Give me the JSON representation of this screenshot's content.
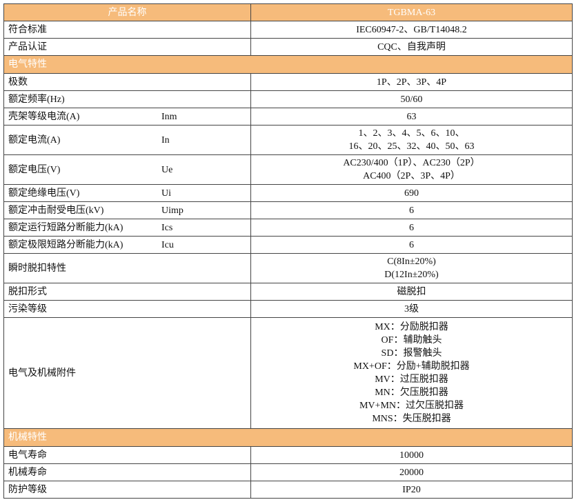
{
  "header": {
    "name_label": "产品名称",
    "model": "TGBMA-63"
  },
  "general": [
    {
      "label": "符合标准",
      "value": [
        "IEC60947-2、GB/T14048.2"
      ]
    },
    {
      "label": "产品认证",
      "value": [
        "CQC、自我声明"
      ]
    }
  ],
  "electrical_section": "电气特性",
  "electrical": [
    {
      "label": "极数",
      "symbol": "",
      "value": [
        "1P、2P、3P、4P"
      ]
    },
    {
      "label": "额定频率(Hz)",
      "symbol": "",
      "value": [
        "50/60"
      ]
    },
    {
      "label": "壳架等级电流(A)",
      "symbol": "Inm",
      "value": [
        "63"
      ]
    },
    {
      "label": "额定电流(A)",
      "symbol": "In",
      "value": [
        "1、2、3、4、5、6、10、",
        "16、20、25、32、40、50、63"
      ]
    },
    {
      "label": "额定电压(V)",
      "symbol": "Ue",
      "value": [
        "AC230/400（1P）、AC230（2P）",
        "AC400（2P、3P、4P）"
      ]
    },
    {
      "label": "额定绝缘电压(V)",
      "symbol": "Ui",
      "value": [
        "690"
      ]
    },
    {
      "label": "额定冲击耐受电压(kV)",
      "symbol": "Uimp",
      "value": [
        "6"
      ]
    },
    {
      "label": "额定运行短路分断能力(kA)",
      "symbol": "Ics",
      "value": [
        "6"
      ]
    },
    {
      "label": "额定极限短路分断能力(kA)",
      "symbol": "Icu",
      "value": [
        "6"
      ]
    },
    {
      "label": "瞬时脱扣特性",
      "symbol": "",
      "value": [
        "C(8In±20%)",
        "D(12In±20%)"
      ]
    },
    {
      "label": "脱扣形式",
      "symbol": "",
      "value": [
        "磁脱扣"
      ]
    },
    {
      "label": "污染等级",
      "symbol": "",
      "value": [
        "3级"
      ]
    },
    {
      "label": "电气及机械附件",
      "symbol": "",
      "value": [
        "MX：分励脱扣器",
        "OF：辅助触头",
        "SD：报警触头",
        "MX+OF：分励+辅助脱扣器",
        "MV：过压脱扣器",
        "MN：欠压脱扣器",
        "MV+MN：过欠压脱扣器",
        "MNS：失压脱扣器"
      ]
    }
  ],
  "mechanical_section": "机械特性",
  "mechanical": [
    {
      "label": "电气寿命",
      "value": [
        "10000"
      ]
    },
    {
      "label": "机械寿命",
      "value": [
        "20000"
      ]
    },
    {
      "label": "防护等级",
      "value": [
        "IP20"
      ]
    }
  ],
  "colors": {
    "header_bg": "#F6BB7B",
    "header_text": "#FFFFFF",
    "border": "#444444"
  }
}
